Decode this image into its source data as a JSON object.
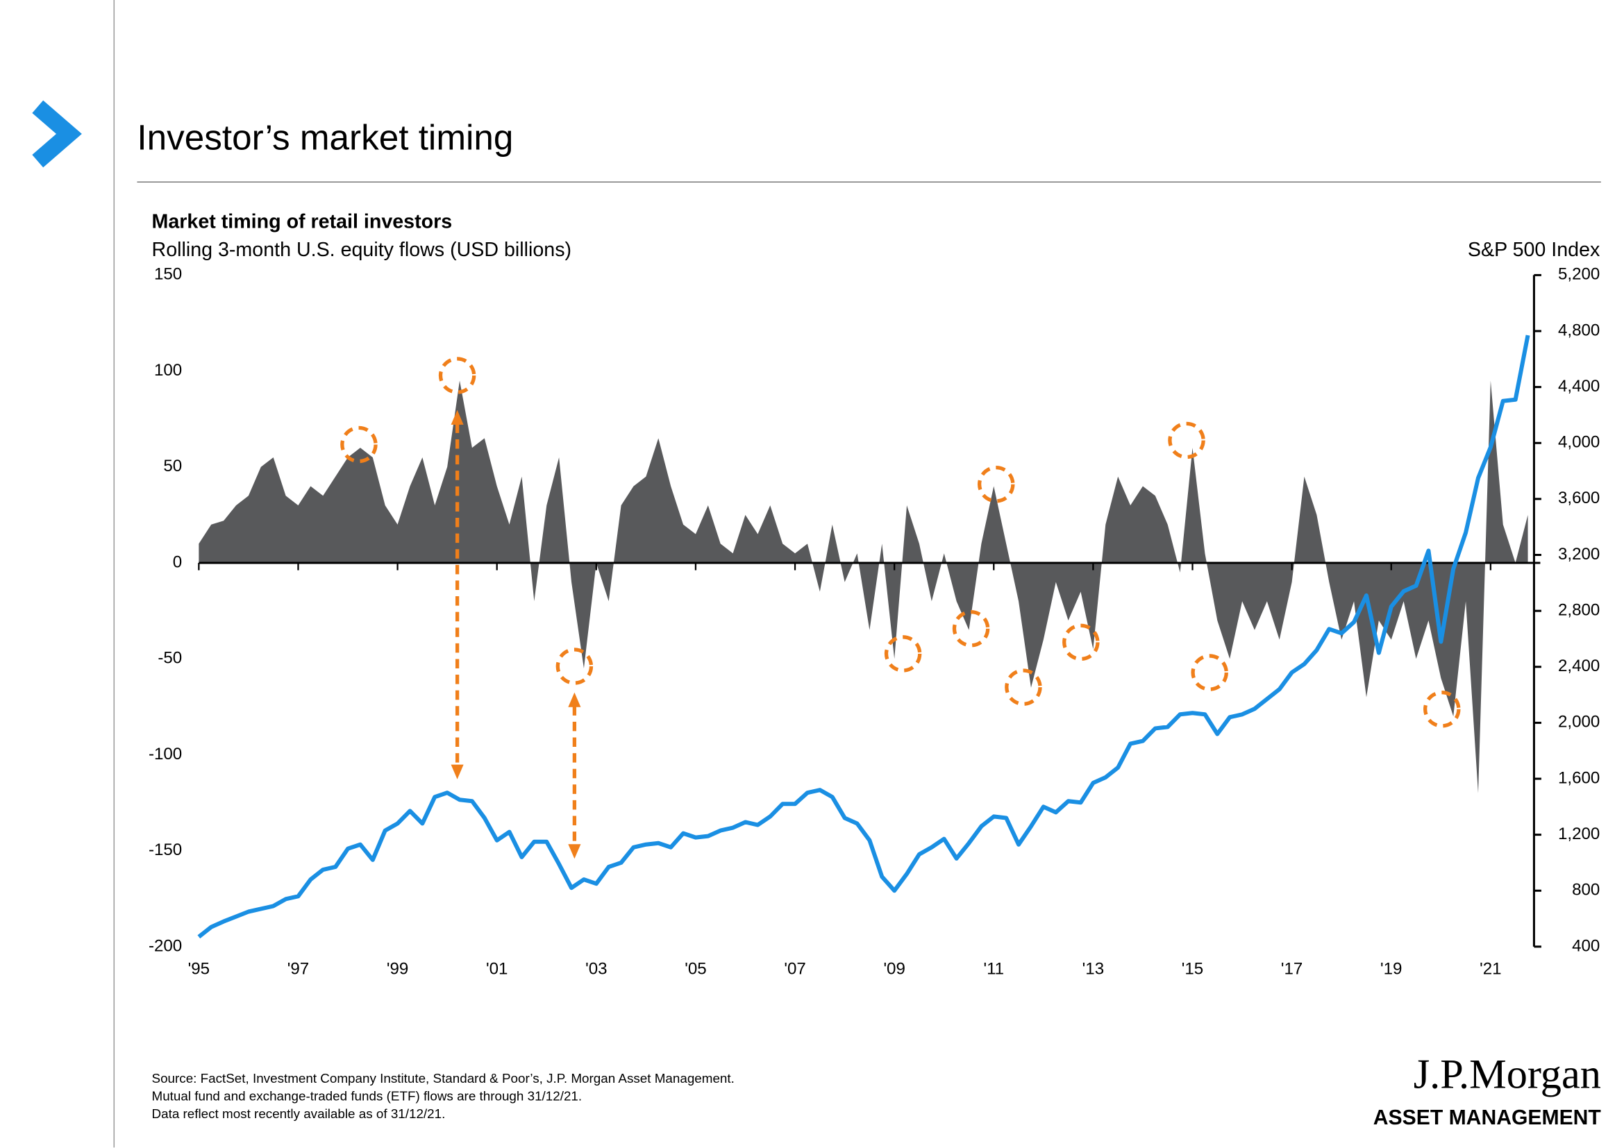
{
  "header": {
    "title": "Investor’s market timing"
  },
  "chart_data": {
    "type": "combo",
    "title": "Market timing of retail investors",
    "subtitle": "Rolling 3-month U.S. equity flows (USD billions)",
    "y2_label": "S&P 500 Index",
    "x": [
      1995,
      1995.25,
      1995.5,
      1995.75,
      1996,
      1996.25,
      1996.5,
      1996.75,
      1997,
      1997.25,
      1997.5,
      1997.75,
      1998,
      1998.25,
      1998.5,
      1998.75,
      1999,
      1999.25,
      1999.5,
      1999.75,
      2000,
      2000.25,
      2000.5,
      2000.75,
      2001,
      2001.25,
      2001.5,
      2001.75,
      2002,
      2002.25,
      2002.5,
      2002.75,
      2003,
      2003.25,
      2003.5,
      2003.75,
      2004,
      2004.25,
      2004.5,
      2004.75,
      2005,
      2005.25,
      2005.5,
      2005.75,
      2006,
      2006.25,
      2006.5,
      2006.75,
      2007,
      2007.25,
      2007.5,
      2007.75,
      2008,
      2008.25,
      2008.5,
      2008.75,
      2009,
      2009.25,
      2009.5,
      2009.75,
      2010,
      2010.25,
      2010.5,
      2010.75,
      2011,
      2011.25,
      2011.5,
      2011.75,
      2012,
      2012.25,
      2012.5,
      2012.75,
      2013,
      2013.25,
      2013.5,
      2013.75,
      2014,
      2014.25,
      2014.5,
      2014.75,
      2015,
      2015.25,
      2015.5,
      2015.75,
      2016,
      2016.25,
      2016.5,
      2016.75,
      2017,
      2017.25,
      2017.5,
      2017.75,
      2018,
      2018.25,
      2018.5,
      2018.75,
      2019,
      2019.25,
      2019.5,
      2019.75,
      2020,
      2020.25,
      2020.5,
      2020.75,
      2021,
      2021.25,
      2021.5,
      2021.75
    ],
    "series": [
      {
        "name": "Equity flows",
        "type": "area",
        "axis": "y",
        "color": "#58595b",
        "values": [
          10,
          20,
          22,
          30,
          35,
          50,
          55,
          35,
          30,
          40,
          35,
          45,
          55,
          60,
          55,
          30,
          20,
          40,
          55,
          30,
          50,
          95,
          60,
          65,
          40,
          20,
          45,
          -20,
          30,
          55,
          -10,
          -55,
          0,
          -20,
          30,
          40,
          45,
          65,
          40,
          20,
          15,
          30,
          10,
          5,
          25,
          15,
          30,
          10,
          5,
          10,
          -15,
          20,
          -10,
          5,
          -35,
          10,
          -50,
          30,
          10,
          -20,
          5,
          -20,
          -35,
          10,
          40,
          10,
          -20,
          -65,
          -40,
          -10,
          -30,
          -15,
          -45,
          20,
          45,
          30,
          40,
          35,
          20,
          -5,
          60,
          5,
          -30,
          -50,
          -20,
          -35,
          -20,
          -40,
          -10,
          45,
          25,
          -10,
          -40,
          -20,
          -70,
          -30,
          -40,
          -20,
          -50,
          -30,
          -60,
          -80,
          -20,
          -120,
          95,
          20,
          0,
          25
        ]
      },
      {
        "name": "S&P 500 Index",
        "type": "line",
        "axis": "y2",
        "color": "#1a8fe3",
        "values": [
          470,
          540,
          580,
          615,
          650,
          670,
          690,
          740,
          760,
          880,
          950,
          970,
          1100,
          1130,
          1020,
          1230,
          1280,
          1370,
          1280,
          1470,
          1500,
          1450,
          1440,
          1320,
          1160,
          1220,
          1040,
          1150,
          1150,
          990,
          820,
          880,
          850,
          970,
          1000,
          1110,
          1130,
          1140,
          1110,
          1210,
          1180,
          1190,
          1230,
          1250,
          1290,
          1270,
          1330,
          1420,
          1420,
          1500,
          1520,
          1470,
          1320,
          1280,
          1160,
          900,
          800,
          920,
          1060,
          1110,
          1170,
          1030,
          1140,
          1260,
          1330,
          1320,
          1130,
          1260,
          1400,
          1360,
          1440,
          1430,
          1570,
          1610,
          1680,
          1850,
          1870,
          1960,
          1970,
          2060,
          2070,
          2060,
          1920,
          2040,
          2060,
          2100,
          2170,
          2240,
          2360,
          2420,
          2520,
          2670,
          2640,
          2720,
          2910,
          2500,
          2830,
          2940,
          2980,
          3230,
          2580,
          3100,
          3360,
          3750,
          3970,
          4300,
          4310,
          4770
        ]
      }
    ],
    "xlim": [
      1995,
      2022
    ],
    "xticks": [
      {
        "value": 1995,
        "label": "'95"
      },
      {
        "value": 1997,
        "label": "'97"
      },
      {
        "value": 1999,
        "label": "'99"
      },
      {
        "value": 2001,
        "label": "'01"
      },
      {
        "value": 2003,
        "label": "'03"
      },
      {
        "value": 2005,
        "label": "'05"
      },
      {
        "value": 2007,
        "label": "'07"
      },
      {
        "value": 2009,
        "label": "'09"
      },
      {
        "value": 2011,
        "label": "'11"
      },
      {
        "value": 2013,
        "label": "'13"
      },
      {
        "value": 2015,
        "label": "'15"
      },
      {
        "value": 2017,
        "label": "'17"
      },
      {
        "value": 2019,
        "label": "'19"
      },
      {
        "value": 2021,
        "label": "'21"
      }
    ],
    "ylim": [
      -200,
      150
    ],
    "yticks": [
      150,
      100,
      50,
      0,
      -50,
      -100,
      -150,
      -200
    ],
    "y2lim": [
      400,
      5200
    ],
    "y2ticks": [
      {
        "value": 5200,
        "label": "5,200"
      },
      {
        "value": 4800,
        "label": "4,800"
      },
      {
        "value": 4400,
        "label": "4,400"
      },
      {
        "value": 4000,
        "label": "4,000"
      },
      {
        "value": 3600,
        "label": "3,600"
      },
      {
        "value": 3200,
        "label": "3,200"
      },
      {
        "value": 2800,
        "label": "2,800"
      },
      {
        "value": 2400,
        "label": "2,400"
      },
      {
        "value": 2000,
        "label": "2,000"
      },
      {
        "value": 1600,
        "label": "1,600"
      },
      {
        "value": 1200,
        "label": "1,200"
      },
      {
        "value": 800,
        "label": "800"
      },
      {
        "value": 400,
        "label": "400"
      }
    ]
  },
  "footer": {
    "source": [
      "Source: FactSet, Investment Company Institute, Standard & Poor’s, J.P. Morgan Asset Management.",
      "Mutual fund and exchange-traded funds (ETF) flows are through 31/12/21.",
      "Data reflect most recently available as of 31/12/21."
    ],
    "logo": "J.P.Morgan",
    "logo_sub": "ASSET MANAGEMENT"
  }
}
